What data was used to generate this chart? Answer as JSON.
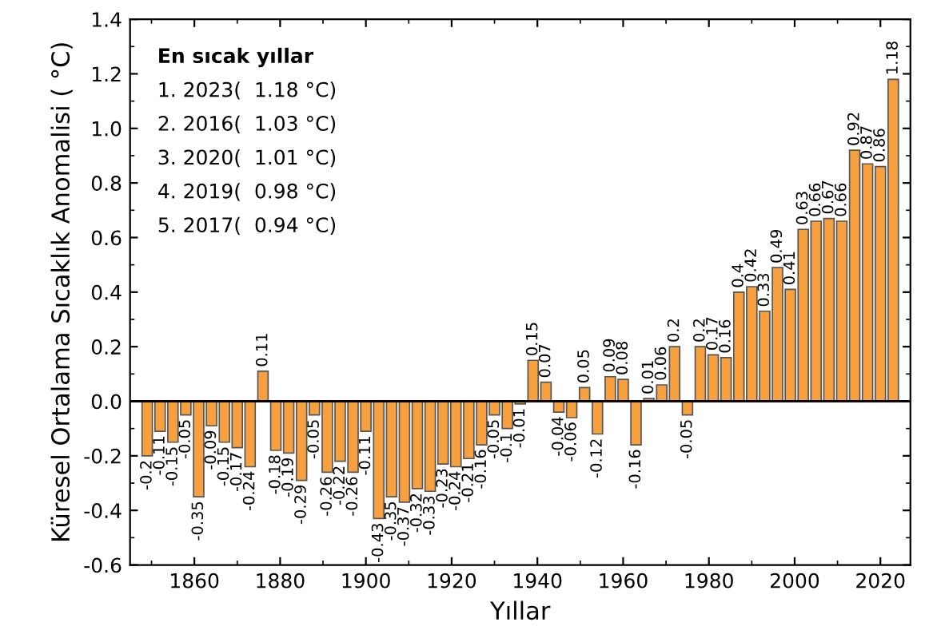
{
  "chart_data": {
    "type": "bar",
    "xlabel": "Yıllar",
    "ylabel": "Küresel Ortalama Sıcaklık Anomalisi ( °C)",
    "x": [
      1849,
      1852,
      1855,
      1858,
      1861,
      1864,
      1867,
      1870,
      1873,
      1876,
      1879,
      1882,
      1885,
      1888,
      1891,
      1894,
      1897,
      1900,
      1903,
      1906,
      1909,
      1912,
      1915,
      1918,
      1921,
      1924,
      1927,
      1930,
      1933,
      1936,
      1939,
      1942,
      1945,
      1948,
      1951,
      1954,
      1957,
      1960,
      1963,
      1966,
      1969,
      1972,
      1975,
      1978,
      1981,
      1984,
      1987,
      1990,
      1993,
      1996,
      1999,
      2002,
      2005,
      2008,
      2011,
      2014,
      2017,
      2020,
      2023
    ],
    "values": [
      -0.2,
      -0.11,
      -0.15,
      -0.05,
      -0.35,
      -0.09,
      -0.15,
      -0.17,
      -0.24,
      0.11,
      -0.18,
      -0.19,
      -0.29,
      -0.05,
      -0.26,
      -0.22,
      -0.26,
      -0.11,
      -0.43,
      -0.35,
      -0.37,
      -0.32,
      -0.33,
      -0.23,
      -0.24,
      -0.21,
      -0.16,
      -0.05,
      -0.1,
      -0.01,
      0.15,
      0.07,
      -0.04,
      -0.06,
      0.05,
      -0.12,
      0.09,
      0.08,
      -0.16,
      0.01,
      0.06,
      0.2,
      -0.05,
      0.2,
      0.17,
      0.16,
      0.4,
      0.42,
      0.33,
      0.49,
      0.41,
      0.63,
      0.66,
      0.67,
      0.66,
      0.92,
      0.87,
      0.86,
      1.18
    ],
    "color": "#f7a040",
    "data_labels": true,
    "xlim": [
      1845,
      2027
    ],
    "xticks": [
      1860,
      1880,
      1900,
      1920,
      1940,
      1960,
      1980,
      2000,
      2020
    ],
    "ylim": [
      -0.6,
      1.4
    ],
    "yticks": [
      {
        "value": -0.6,
        "label": "-0.6"
      },
      {
        "value": -0.4,
        "label": "-0.4"
      },
      {
        "value": -0.2,
        "label": "-0.2"
      },
      {
        "value": 0,
        "label": "0.0"
      },
      {
        "value": 0.2,
        "label": "0.2"
      },
      {
        "value": 0.4,
        "label": "0.4"
      },
      {
        "value": 0.6,
        "label": "0.6"
      },
      {
        "value": 0.8,
        "label": "0.8"
      },
      {
        "value": 1,
        "label": "1.0"
      },
      {
        "value": 1.2,
        "label": "1.2"
      },
      {
        "value": 1.4,
        "label": "1.4"
      }
    ],
    "ref_lines": [
      {
        "axis": "y",
        "value": 0,
        "color": "#000000"
      }
    ],
    "annotations": [
      "En sıcak yıllar",
      "1. 2023(  1.18 °C)",
      "2. 2016(  1.03 °C)",
      "3. 2020(  1.01 °C)",
      "4. 2019(  0.98 °C)",
      "5. 2017(  0.94 °C)"
    ]
  }
}
